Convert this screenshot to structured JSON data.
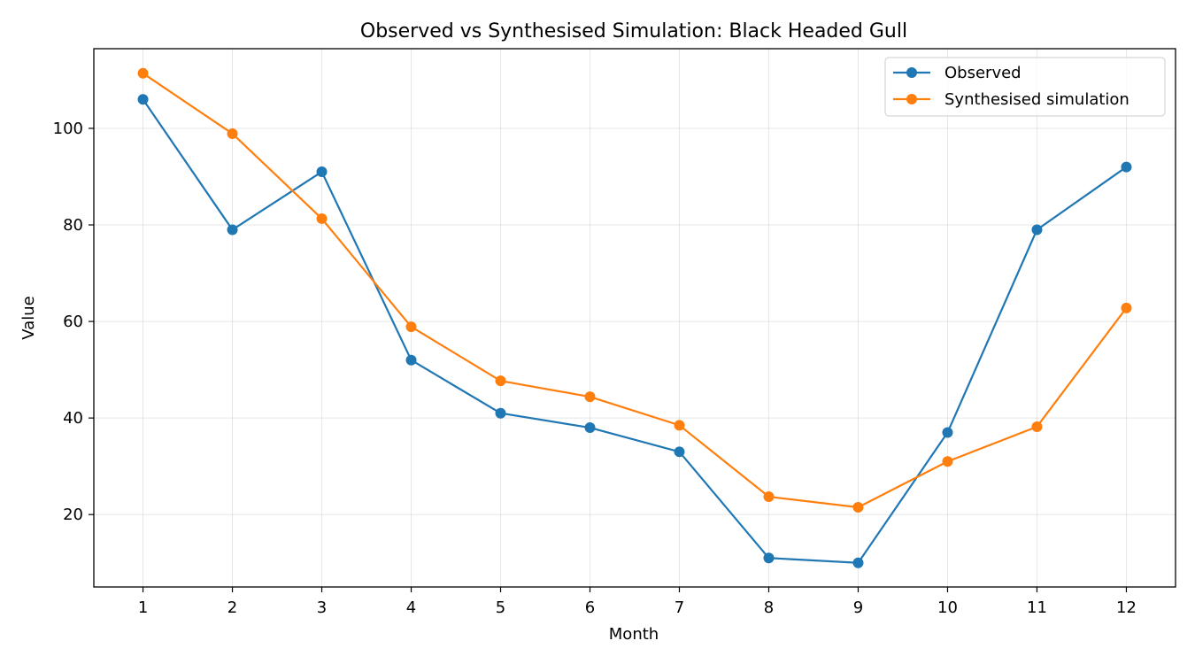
{
  "chart_data": {
    "type": "line",
    "title": "Observed vs Synthesised Simulation: Black Headed Gull",
    "xlabel": "Month",
    "ylabel": "Value",
    "x": [
      1,
      2,
      3,
      4,
      5,
      6,
      7,
      8,
      9,
      10,
      11,
      12
    ],
    "xlim": [
      0.45,
      12.55
    ],
    "ylim": [
      5,
      116.5
    ],
    "yticks": [
      20,
      40,
      60,
      80,
      100
    ],
    "grid": true,
    "legend_position": "top-right",
    "series": [
      {
        "name": "Observed",
        "color": "#1f77b4",
        "values": [
          106,
          79,
          91,
          52,
          41,
          38,
          33,
          11,
          10,
          37,
          79,
          92
        ]
      },
      {
        "name": "Synthesised simulation",
        "color": "#ff7f0e",
        "values": [
          111.4,
          98.9,
          81.3,
          58.9,
          47.7,
          44.4,
          38.5,
          23.7,
          21.5,
          31.0,
          38.2,
          62.8
        ]
      }
    ]
  }
}
